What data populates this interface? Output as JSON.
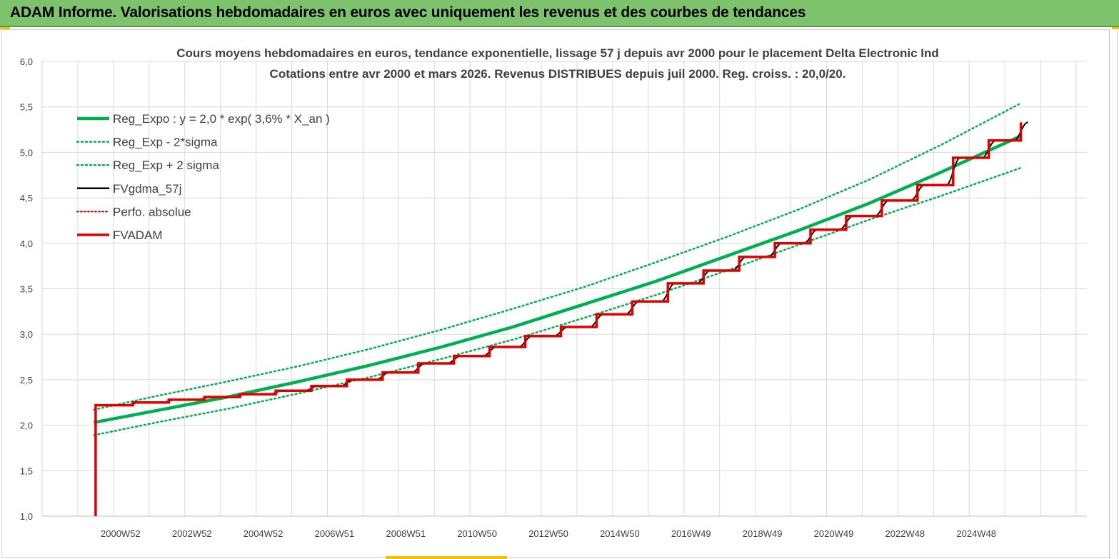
{
  "header": {
    "title": "ADAM Informe. Valorisations hebdomadaires en euros avec uniquement les revenus et des courbes de tendances"
  },
  "colors": {
    "header_bg": "#7dc36b",
    "reg_expo": "#00b050",
    "fvgdma": "#000000",
    "fvadam": "#e00000",
    "perfo": "#c00000",
    "grid": "#d9d9d9"
  },
  "chart_data": {
    "type": "line",
    "title_line1": "Cours moyens hebdomadaires en euros, tendance exponentielle, lissage 57 j depuis avr 2000 pour le placement Delta Electronic Ind",
    "title_line2": "Cotations entre avr 2000 et mars 2026. Revenus DISTRIBUES depuis juil 2000. Reg. croiss. : 20,0/20.",
    "ylim": [
      1.0,
      6.0
    ],
    "y_ticks": [
      "1,0",
      "1,5",
      "2,0",
      "2,5",
      "3,0",
      "3,5",
      "4,0",
      "4,5",
      "5,0",
      "5,5",
      "6,0"
    ],
    "x_ticks": [
      "2000W52",
      "2002W52",
      "2004W52",
      "2006W51",
      "2008W51",
      "2010W50",
      "2012W50",
      "2014W50",
      "2016W49",
      "2018W49",
      "2020W49",
      "2022W48",
      "2024W48"
    ],
    "x_range_years": [
      1998.8,
      2028.1
    ],
    "grid": true,
    "legend_position": "top-left",
    "series": [
      {
        "name": "Reg_Expo : y = 2,0 * exp( 3,6% *  X_an )",
        "style": "solid-thick",
        "color": "#00b050",
        "x": [
          2000.25,
          2002,
          2004,
          2006,
          2008,
          2010,
          2012,
          2014,
          2016,
          2018,
          2020,
          2022,
          2024,
          2026.25
        ],
        "values": [
          2.03,
          2.16,
          2.31,
          2.48,
          2.66,
          2.86,
          3.08,
          3.33,
          3.58,
          3.86,
          4.14,
          4.44,
          4.78,
          5.18
        ]
      },
      {
        "name": "Reg_Exp - 2*sigma",
        "style": "dotted",
        "color": "#00b050",
        "x": [
          2000.25,
          2002,
          2004,
          2006,
          2008,
          2010,
          2012,
          2014,
          2016,
          2018,
          2020,
          2022,
          2024,
          2026.25
        ],
        "values": [
          1.89,
          2.03,
          2.18,
          2.35,
          2.53,
          2.73,
          2.94,
          3.18,
          3.43,
          3.7,
          3.98,
          4.26,
          4.52,
          4.83
        ]
      },
      {
        "name": "Reg_Exp + 2 sigma",
        "style": "dotted",
        "color": "#00b050",
        "x": [
          2000.25,
          2002,
          2004,
          2006,
          2008,
          2010,
          2012,
          2014,
          2016,
          2018,
          2020,
          2022,
          2024,
          2026.25
        ],
        "values": [
          2.17,
          2.32,
          2.48,
          2.65,
          2.84,
          3.05,
          3.28,
          3.52,
          3.79,
          4.07,
          4.37,
          4.7,
          5.08,
          5.54
        ]
      },
      {
        "name": "FVgdma_57j",
        "style": "solid",
        "color": "#000000",
        "x": [
          2000.3,
          2001.35,
          2002.35,
          2003.35,
          2004.35,
          2005.35,
          2006.35,
          2007.35,
          2008.35,
          2009.35,
          2010.35,
          2011.35,
          2012.35,
          2013.35,
          2014.35,
          2015.35,
          2016.35,
          2017.35,
          2018.35,
          2019.35,
          2020.35,
          2021.35,
          2022.35,
          2023.35,
          2024.35,
          2025.35,
          2026.25
        ],
        "values": [
          2.22,
          2.25,
          2.28,
          2.31,
          2.34,
          2.38,
          2.43,
          2.5,
          2.58,
          2.68,
          2.76,
          2.86,
          2.98,
          3.08,
          3.22,
          3.36,
          3.56,
          3.7,
          3.85,
          4.0,
          4.15,
          4.3,
          4.47,
          4.64,
          4.94,
          5.13,
          5.33
        ]
      },
      {
        "name": "Perfo. absolue",
        "style": "dotted",
        "color": "#c00000",
        "x": [
          2000.3,
          2026.25
        ],
        "values": [
          2.22,
          5.33
        ]
      },
      {
        "name": "FVADAM",
        "style": "step-thick",
        "color": "#e00000",
        "x": [
          2000.3,
          2001.35,
          2002.35,
          2003.35,
          2004.35,
          2005.35,
          2006.35,
          2007.35,
          2008.35,
          2009.35,
          2010.35,
          2011.35,
          2012.35,
          2013.35,
          2014.35,
          2015.35,
          2016.35,
          2017.35,
          2018.35,
          2019.35,
          2020.35,
          2021.35,
          2022.35,
          2023.35,
          2024.35,
          2025.35,
          2026.25
        ],
        "values": [
          2.22,
          2.25,
          2.28,
          2.31,
          2.34,
          2.38,
          2.43,
          2.5,
          2.58,
          2.68,
          2.76,
          2.86,
          2.98,
          3.08,
          3.22,
          3.36,
          3.56,
          3.7,
          3.85,
          4.0,
          4.15,
          4.3,
          4.47,
          4.64,
          4.94,
          5.13,
          5.33
        ],
        "initial_value": 1.0
      }
    ]
  }
}
